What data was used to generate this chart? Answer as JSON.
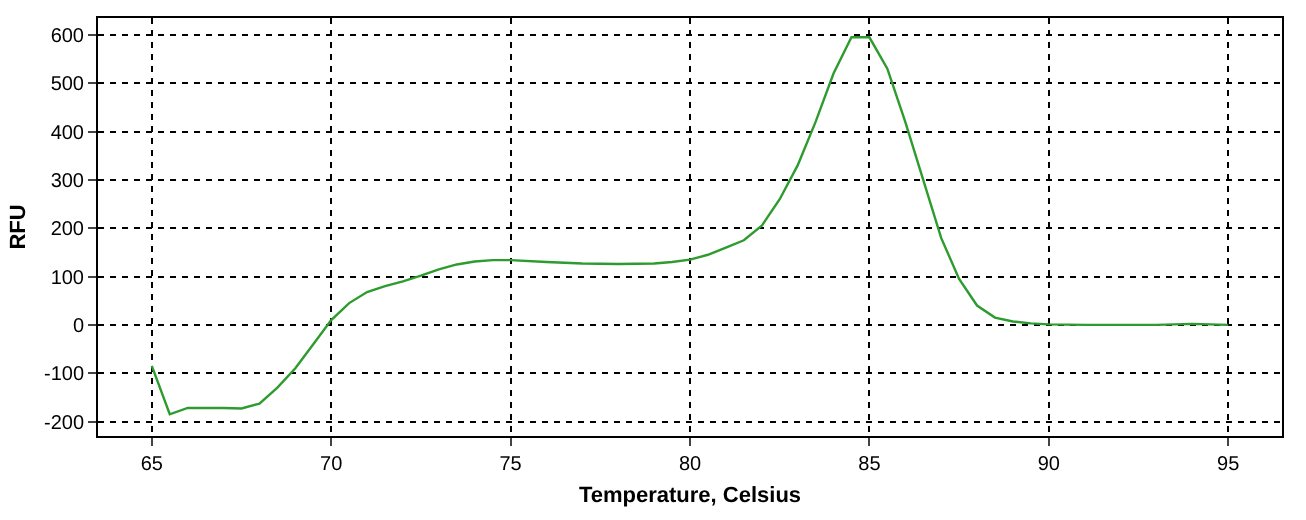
{
  "chart_data": {
    "type": "line",
    "xlabel": "Temperature, Celsius",
    "ylabel": "RFU",
    "x": [
      65,
      65.5,
      66,
      67,
      67.5,
      68,
      68.5,
      69,
      69.5,
      70,
      70.5,
      71,
      71.5,
      72,
      72.5,
      73,
      73.5,
      74,
      74.5,
      75,
      76,
      77,
      78,
      79,
      79.5,
      80,
      80.5,
      81,
      81.5,
      82,
      82.5,
      83,
      83.5,
      84,
      84.5,
      85,
      85.5,
      86,
      86.5,
      87,
      87.5,
      88,
      88.5,
      89,
      89.5,
      90,
      91,
      92,
      93,
      94,
      95
    ],
    "series": [
      {
        "color": "#2e9b2e",
        "values": [
          -85,
          -185,
          -172,
          -172,
          -173,
          -163,
          -130,
          -90,
          -40,
          10,
          45,
          68,
          80,
          90,
          102,
          115,
          125,
          131,
          134,
          134,
          130,
          127,
          126,
          127,
          130,
          135,
          145,
          160,
          175,
          205,
          260,
          330,
          420,
          520,
          595,
          595,
          530,
          420,
          300,
          180,
          95,
          40,
          15,
          7,
          3,
          1,
          0,
          0,
          0,
          2,
          0
        ]
      }
    ],
    "xlim": [
      63.5,
      96.5
    ],
    "ylim": [
      -230,
      635
    ],
    "xticks": [
      65,
      70,
      75,
      80,
      85,
      90,
      95
    ],
    "yticks": [
      -200,
      -100,
      0,
      100,
      200,
      300,
      400,
      500,
      600
    ],
    "grid": true,
    "legend": false,
    "marker": "none",
    "line_style": "solid"
  }
}
